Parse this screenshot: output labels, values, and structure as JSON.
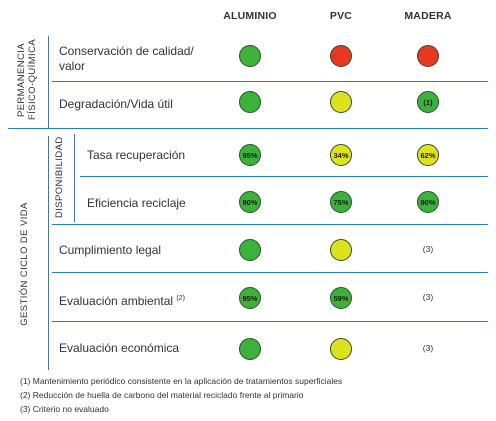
{
  "columns": [
    "ALUMINIO",
    "PVC",
    "MADERA"
  ],
  "groups": {
    "physical": "PERMANENCIA\nFÍSICO-QUÍMICA",
    "physical_line1": "PERMANENCIA",
    "physical_line2": "FÍSICO-QUÍMICA",
    "lifecycle": "GESTIÓN CICLO DE VIDA",
    "availability": "DISPONIBILIDAD"
  },
  "rows": [
    {
      "label_line1": "Conservación de calidad/",
      "label_line2": "valor",
      "cells": [
        {
          "color": "green",
          "text": ""
        },
        {
          "color": "red",
          "text": ""
        },
        {
          "color": "red",
          "text": ""
        }
      ]
    },
    {
      "label_line1": "Degradación/Vida útil",
      "label_line2": "",
      "cells": [
        {
          "color": "green",
          "text": ""
        },
        {
          "color": "yellow",
          "text": ""
        },
        {
          "color": "green",
          "text": "(1)"
        }
      ]
    },
    {
      "label_line1": "Tasa recuperación",
      "label_line2": "",
      "cells": [
        {
          "color": "green",
          "text": "95%"
        },
        {
          "color": "yellow",
          "text": "34%"
        },
        {
          "color": "yellow",
          "text": "62%"
        }
      ]
    },
    {
      "label_line1": "Eficiencia reciclaje",
      "label_line2": "",
      "cells": [
        {
          "color": "green",
          "text": "90%"
        },
        {
          "color": "green",
          "text": "75%"
        },
        {
          "color": "green",
          "text": "90%"
        }
      ]
    },
    {
      "label_line1": "Cumplimiento legal",
      "label_line2": "",
      "cells": [
        {
          "color": "green",
          "text": ""
        },
        {
          "color": "yellow",
          "text": ""
        },
        {
          "color": "none",
          "text": "(3)"
        }
      ]
    },
    {
      "label_line1": "Evaluación ambiental",
      "label_line2": "",
      "label_sup": "(2)",
      "cells": [
        {
          "color": "green",
          "text": "95%"
        },
        {
          "color": "green",
          "text": "59%"
        },
        {
          "color": "none",
          "text": "(3)"
        }
      ]
    },
    {
      "label_line1": "Evaluación económica",
      "label_line2": "",
      "cells": [
        {
          "color": "green",
          "text": ""
        },
        {
          "color": "yellow",
          "text": ""
        },
        {
          "color": "none",
          "text": "(3)"
        }
      ]
    }
  ],
  "footnotes": [
    "(1) Mantenimiento periódico consistente en la aplicación de tratamientos superficiales",
    "(2) Reducción de huella de carbono del material reciclado frente al primario",
    "(3) Criterio no evaluado"
  ],
  "colors": {
    "green": "#3bb33b",
    "yellow": "#dde21f",
    "red": "#e8381f",
    "line": "#2a7fb8"
  }
}
